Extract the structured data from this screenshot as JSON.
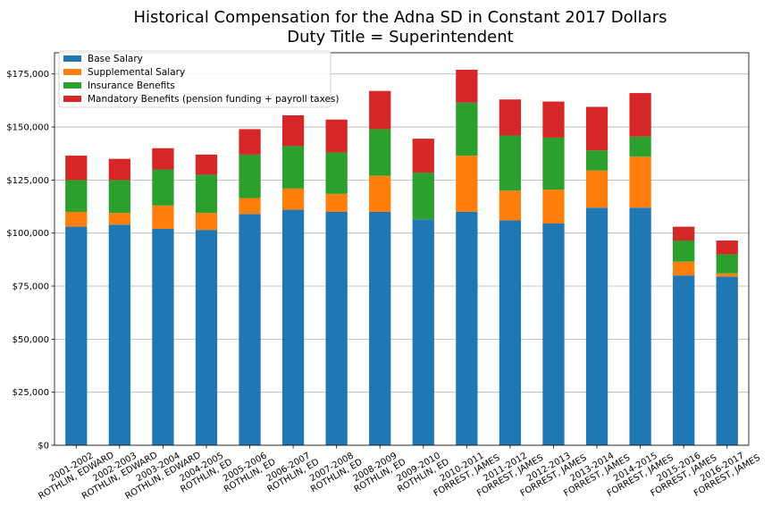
{
  "chart_data": {
    "type": "bar",
    "stacked": true,
    "title": "Historical Compensation for the Adna SD in Constant 2017 Dollars",
    "subtitle": "Duty Title = Superintendent",
    "xlabel": "",
    "ylabel": "",
    "ylim": [
      0,
      185000
    ],
    "yticks": [
      0,
      25000,
      50000,
      75000,
      100000,
      125000,
      150000,
      175000
    ],
    "ytick_labels": [
      "$0",
      "$25,000",
      "$50,000",
      "$75,000",
      "$100,000",
      "$125,000",
      "$150,000",
      "$175,000"
    ],
    "grid": "horizontal",
    "legend_position": "top-left",
    "categories": [
      [
        "2001-2002",
        "ROTHLIN, EDWARD"
      ],
      [
        "2002-2003",
        "ROTHLIN, EDWARD"
      ],
      [
        "2003-2004",
        "ROTHLIN, EDWARD"
      ],
      [
        "2004-2005",
        "ROTHLIN, ED"
      ],
      [
        "2005-2006",
        "ROTHLIN, ED"
      ],
      [
        "2006-2007",
        "ROTHLIN, ED"
      ],
      [
        "2007-2008",
        "ROTHLIN, ED"
      ],
      [
        "2008-2009",
        "ROTHLIN, ED"
      ],
      [
        "2009-2010",
        "ROTHLIN, ED"
      ],
      [
        "2010-2011",
        "FORREST, JAMES"
      ],
      [
        "2011-2012",
        "FORREST, JAMES"
      ],
      [
        "2012-2013",
        "FORREST, JAMES"
      ],
      [
        "2013-2014",
        "FORREST, JAMES"
      ],
      [
        "2014-2015",
        "FORREST, JAMES"
      ],
      [
        "2015-2016",
        "FORREST, JAMES"
      ],
      [
        "2016-2017",
        "FORREST, JAMES"
      ]
    ],
    "series": [
      {
        "name": "Base Salary",
        "color": "#1f77b4",
        "values": [
          103000,
          104000,
          102000,
          101500,
          109000,
          111000,
          110000,
          110000,
          106500,
          110000,
          106000,
          104500,
          112000,
          112000,
          80000,
          79500
        ]
      },
      {
        "name": "Supplemental Salary",
        "color": "#ff7f0e",
        "values": [
          7000,
          5500,
          11000,
          8000,
          7500,
          10000,
          8500,
          17000,
          0,
          26500,
          14000,
          16000,
          17500,
          24000,
          6500,
          1500
        ]
      },
      {
        "name": "Insurance Benefits",
        "color": "#2ca02c",
        "values": [
          15000,
          15500,
          17000,
          18000,
          20500,
          20000,
          19500,
          22000,
          22000,
          25000,
          26000,
          24500,
          9500,
          9500,
          10000,
          9000
        ]
      },
      {
        "name": "Mandatory Benefits (pension funding + payroll taxes)",
        "color": "#d62728",
        "values": [
          11500,
          10000,
          10000,
          9500,
          12000,
          14500,
          15500,
          18000,
          16000,
          15500,
          17000,
          17000,
          20500,
          20500,
          6500,
          6500
        ]
      }
    ]
  }
}
